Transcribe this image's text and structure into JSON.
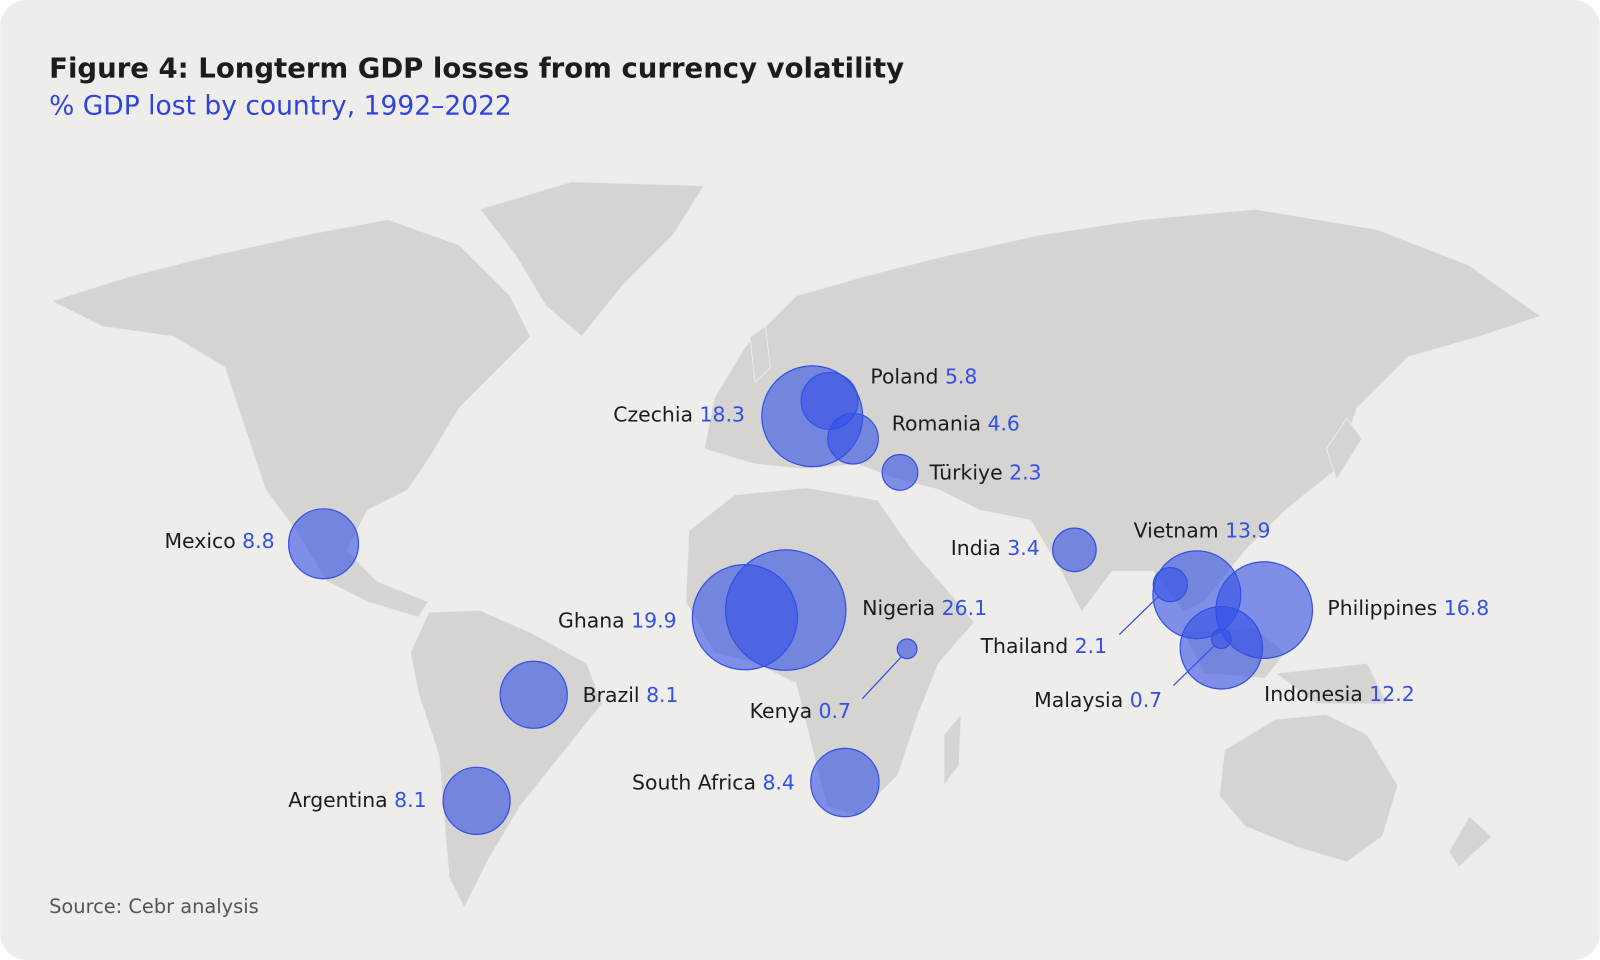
{
  "chart_data": {
    "type": "bubble-map",
    "title": "Figure 4: Longterm GDP losses from currency volatility",
    "subtitle": "% GDP lost by country, 1992–2022",
    "source": "Source: Cebr analysis",
    "color": "#3350e6",
    "countries": [
      {
        "name": "Czechia",
        "value": 18.3
      },
      {
        "name": "Poland",
        "value": 5.8
      },
      {
        "name": "Romania",
        "value": 4.6
      },
      {
        "name": "Türkiye",
        "value": 2.3
      },
      {
        "name": "Mexico",
        "value": 8.8
      },
      {
        "name": "Brazil",
        "value": 8.1
      },
      {
        "name": "Argentina",
        "value": 8.1
      },
      {
        "name": "Ghana",
        "value": 19.9
      },
      {
        "name": "Nigeria",
        "value": 26.1
      },
      {
        "name": "Kenya",
        "value": 0.7
      },
      {
        "name": "South Africa",
        "value": 8.4
      },
      {
        "name": "India",
        "value": 3.4
      },
      {
        "name": "Vietnam",
        "value": 13.9
      },
      {
        "name": "Thailand",
        "value": 2.1
      },
      {
        "name": "Philippines",
        "value": 16.8
      },
      {
        "name": "Indonesia",
        "value": 12.2
      },
      {
        "name": "Malaysia",
        "value": 0.7
      }
    ]
  }
}
